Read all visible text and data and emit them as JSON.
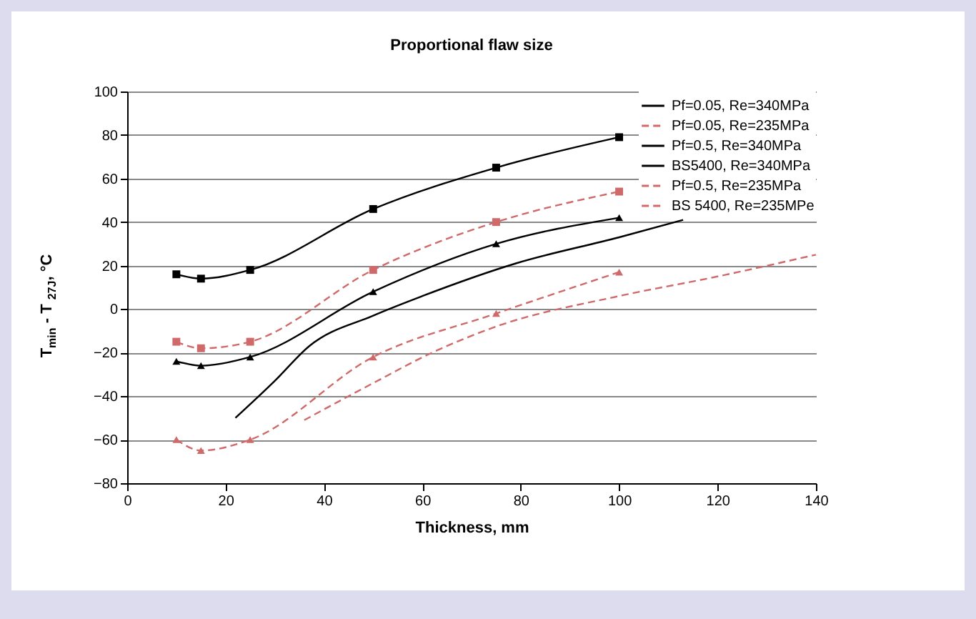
{
  "chart_data": {
    "type": "line",
    "title": "Proportional flaw size",
    "xlabel": "Thickness, mm",
    "ylabel": "T$_{min}$ - T $_{27J}$, °C",
    "xlim": [
      0,
      140
    ],
    "xticks": [
      0,
      20,
      40,
      60,
      80,
      100,
      120,
      140
    ],
    "ylim": [
      -80,
      100
    ],
    "yticks": [
      -80,
      -60,
      -40,
      -20,
      0,
      20,
      40,
      60,
      80,
      100
    ],
    "grid": "y",
    "legend": "top right",
    "series": [
      {
        "name": "Pf=0.05, Re=340MPa",
        "color": "#000000",
        "marker": "square",
        "line_style": "solid",
        "x": [
          10,
          15,
          25,
          50,
          75,
          100
        ],
        "values": [
          16,
          14,
          18,
          46,
          65,
          79
        ]
      },
      {
        "name": "Pf=0.05, Re=235MPa",
        "color": "#d06a6a",
        "marker": "square",
        "line_style": "dashed",
        "x": [
          10,
          15,
          25,
          50,
          75,
          100
        ],
        "values": [
          -15,
          -18,
          -15,
          18,
          40,
          54
        ]
      },
      {
        "name": "Pf=0.5, Re=340MPa",
        "color": "#000000",
        "marker": "triangle",
        "line_style": "solid",
        "x": [
          10,
          15,
          25,
          50,
          75,
          100
        ],
        "values": [
          -24,
          -26,
          -22,
          8,
          30,
          42
        ]
      },
      {
        "name": "BS5400, Re=340MPa",
        "color": "#000000",
        "marker": "none",
        "line_style": "solid",
        "x": [
          22,
          30,
          37,
          50,
          60,
          79,
          100,
          113
        ],
        "values": [
          -50,
          -33,
          -17,
          -3,
          6,
          21,
          33,
          41
        ]
      },
      {
        "name": "Pf=0.5, Re=235MPa",
        "color": "#d06a6a",
        "marker": "triangle",
        "line_style": "dashed",
        "x": [
          10,
          15,
          25,
          50,
          75,
          100
        ],
        "values": [
          -60,
          -65,
          -60,
          -22,
          -2,
          17
        ]
      },
      {
        "name": "BS 5400, Re=235MPe",
        "color": "#d06a6a",
        "marker": "none",
        "line_style": "dashed",
        "x": [
          36,
          50,
          62,
          75,
          100,
          120,
          140
        ],
        "values": [
          -51,
          -34,
          -20,
          -8,
          6,
          15,
          25
        ]
      }
    ]
  }
}
